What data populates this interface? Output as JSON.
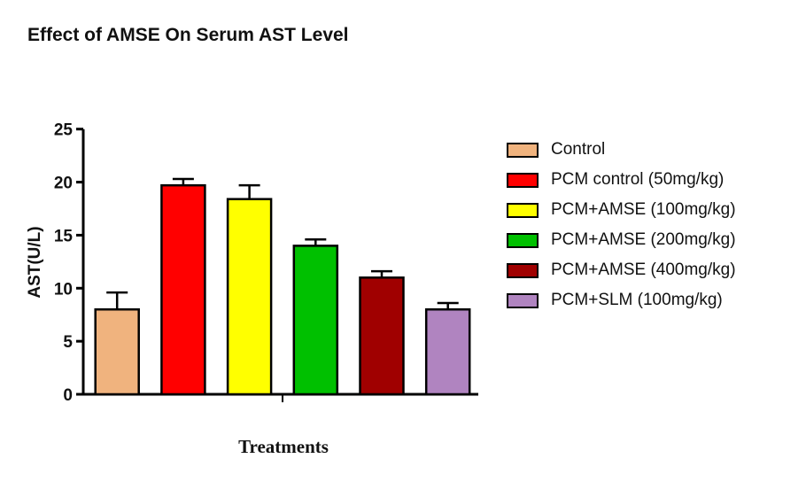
{
  "chart_data": {
    "type": "bar",
    "title": "Effect of AMSE On Serum AST Level",
    "xlabel": "Treatments",
    "ylabel": "AST(U/L)",
    "ylim": [
      0,
      25
    ],
    "yticks": [
      "0",
      "5",
      "10",
      "15",
      "20",
      "25"
    ],
    "grid": false,
    "legend_position": "right",
    "categories": [
      "Control",
      "PCM control (50mg/kg)",
      "PCM+AMSE (100mg/kg)",
      "PCM+AMSE (200mg/kg)",
      "PCM+AMSE (400mg/kg)",
      "PCM+SLM (100mg/kg)"
    ],
    "values": [
      8.0,
      19.7,
      18.4,
      14.0,
      11.0,
      8.0
    ],
    "error_upper": [
      9.6,
      20.3,
      19.7,
      14.6,
      11.6,
      8.6
    ],
    "colors": [
      "#F0B37E",
      "#FF0000",
      "#FFFF00",
      "#00C000",
      "#A00000",
      "#B084C0"
    ]
  }
}
